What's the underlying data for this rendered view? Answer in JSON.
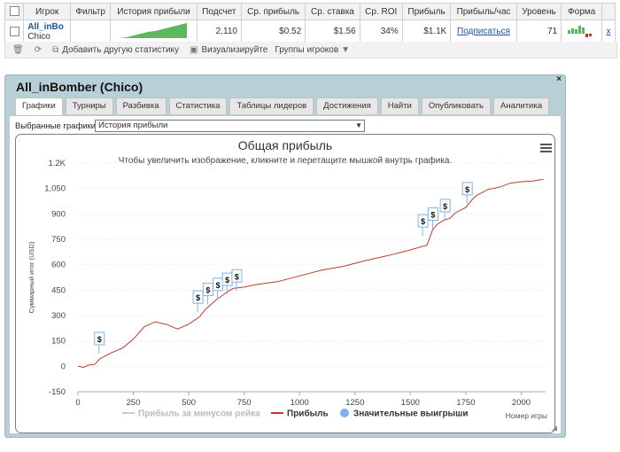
{
  "summary": {
    "headers": [
      "Игрок",
      "Фильтр",
      "История прибыли",
      "Подсчет",
      "Ср. прибыль",
      "Ср. ставка",
      "Ср. ROI",
      "Прибыль",
      "Прибыль/час",
      "Уровень",
      "Форма"
    ],
    "row": {
      "player_name": "All_inBo",
      "player_nick": "Chico",
      "count": "2,110",
      "avg_profit": "$0.52",
      "avg_stake": "$1.56",
      "avg_roi": "34%",
      "profit": "$1.1K",
      "subscribe": "Подписаться",
      "level": "71",
      "remove": "x"
    }
  },
  "toolbar": {
    "add_stats": "Добавить другую статистику",
    "visualize": "Визуализируйте",
    "player_groups": "Группы игроков"
  },
  "panel": {
    "title": "All_inBomber (Chico)",
    "close": "×",
    "tabs": [
      "Графики",
      "Турниры",
      "Разбивка",
      "Статистика",
      "Таблицы лидеров",
      "Достижения",
      "Найти",
      "Опубликовать",
      "Аналитика"
    ],
    "select_label": "Выбранные графики:",
    "select_value": "История прибыли"
  },
  "chart_data": {
    "type": "line",
    "title": "Общая прибыль",
    "subtitle": "Чтобы увеличить изображение, кликните и перетащите мышкой внутрь графика.",
    "xlabel": "Номер игры",
    "ylabel": "Суммарный итог (USD)",
    "xlim": [
      0,
      2110
    ],
    "ylim": [
      -150,
      1200
    ],
    "x_ticks": [
      0,
      250,
      500,
      750,
      1000,
      1250,
      1500,
      1750,
      2000
    ],
    "y_ticks": [
      -150,
      0,
      150,
      300,
      450,
      600,
      750,
      900,
      1050,
      1200
    ],
    "y_tick_labels": [
      "-150",
      "0",
      "150",
      "300",
      "450",
      "600",
      "750",
      "900",
      "1,050",
      "1.2K"
    ],
    "series": [
      {
        "name": "Прибыль за минусом рейка",
        "color": "#cccccc",
        "visible": false,
        "values": []
      },
      {
        "name": "Прибыль",
        "color": "#c0392b",
        "x": [
          0,
          25,
          50,
          75,
          100,
          150,
          200,
          250,
          300,
          350,
          400,
          450,
          500,
          550,
          575,
          600,
          625,
          650,
          675,
          700,
          750,
          800,
          900,
          1000,
          1100,
          1200,
          1300,
          1400,
          1500,
          1575,
          1600,
          1620,
          1650,
          1680,
          1700,
          1750,
          1780,
          1800,
          1850,
          1900,
          1950,
          2000,
          2050,
          2100
        ],
        "values": [
          0,
          -5,
          5,
          15,
          45,
          75,
          110,
          160,
          230,
          265,
          245,
          225,
          250,
          290,
          340,
          365,
          390,
          420,
          440,
          455,
          470,
          480,
          505,
          535,
          565,
          595,
          625,
          650,
          690,
          715,
          800,
          840,
          860,
          880,
          905,
          935,
          990,
          1010,
          1040,
          1060,
          1080,
          1085,
          1095,
          1105
        ]
      },
      {
        "name": "Значительные выигрыши",
        "color": "#7fb3e6",
        "type": "markers",
        "label": "$",
        "x": [
          95,
          540,
          585,
          630,
          672,
          715,
          1555,
          1600,
          1655,
          1755
        ],
        "values": [
          75,
          320,
          365,
          395,
          425,
          445,
          770,
          810,
          860,
          960
        ]
      }
    ],
    "legend": "bottom"
  }
}
